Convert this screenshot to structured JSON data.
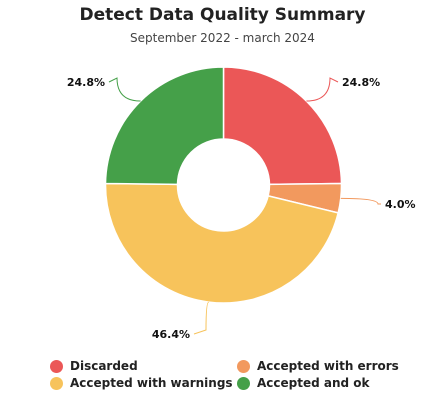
{
  "chart_data": {
    "type": "pie",
    "variant": "donut",
    "title": "Detect Data Quality Summary",
    "subtitle": "September 2022 - march 2024",
    "categories": [
      "Discarded",
      "Accepted with errors",
      "Accepted with warnings",
      "Accepted and ok"
    ],
    "values": [
      24.8,
      4.0,
      46.4,
      24.8
    ],
    "value_labels": [
      "24.8%",
      "4.0%",
      "46.4%",
      "24.8%"
    ],
    "colors": [
      "#eb5757",
      "#f2995e",
      "#f7c35b",
      "#45a049"
    ],
    "legend_position": "bottom"
  }
}
